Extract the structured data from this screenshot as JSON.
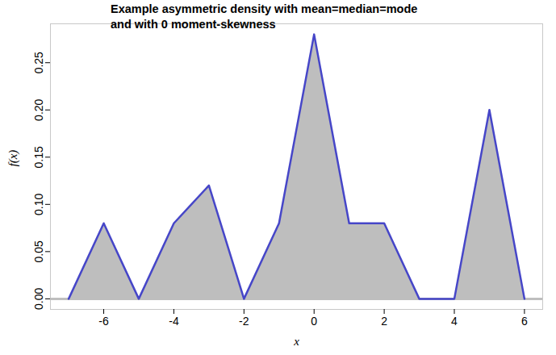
{
  "chart_data": {
    "type": "area",
    "title": "Example asymmetric density with mean=median=mode\nand with 0 moment-skewness",
    "x_label": "x",
    "y_label": "f(x)",
    "x": [
      -7,
      -6,
      -5,
      -4,
      -3,
      -2,
      -1,
      0,
      1,
      2,
      3,
      4,
      5,
      6
    ],
    "values": [
      0,
      0.08,
      0,
      0.08,
      0.12,
      0,
      0.08,
      0.28,
      0.08,
      0.08,
      0,
      0,
      0.2,
      0
    ],
    "color": "#4646c8",
    "xlim": [
      -7.52,
      6.52
    ],
    "xticks": [
      -6,
      -4,
      -2,
      0,
      2,
      4,
      6
    ],
    "ylim": [
      -0.0112,
      0.2912
    ],
    "yticks": [
      {
        "value": 0,
        "label": "0.00"
      },
      {
        "value": 0.05,
        "label": "0.05"
      },
      {
        "value": 0.1,
        "label": "0.10"
      },
      {
        "value": 0.15,
        "label": "0.15"
      },
      {
        "value": 0.2,
        "label": "0.20"
      },
      {
        "value": 0.25,
        "label": "0.25"
      }
    ],
    "grid": false
  }
}
